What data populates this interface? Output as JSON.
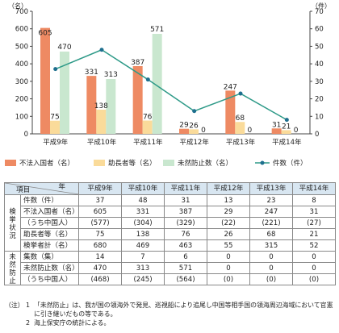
{
  "chart_data": {
    "type": "bar",
    "categories": [
      "平成9年",
      "平成10年",
      "平成11年",
      "平成12年",
      "平成13年",
      "平成14年"
    ],
    "left_unit": "（名）",
    "right_unit": "（件）",
    "left_ylim": [
      0,
      700
    ],
    "left_ticks": [
      0,
      100,
      200,
      300,
      400,
      500,
      600,
      700
    ],
    "right_ylim": [
      0,
      70
    ],
    "right_ticks": [
      0,
      10,
      20,
      30,
      40,
      50,
      60,
      70
    ],
    "series": [
      {
        "name": "不法入国者（名）",
        "type": "bar",
        "color": "#ee8a63",
        "values": [
          605,
          331,
          387,
          29,
          247,
          31
        ]
      },
      {
        "name": "助長者等（名）",
        "type": "bar",
        "color": "#fadb9a",
        "values": [
          75,
          138,
          76,
          26,
          68,
          21
        ]
      },
      {
        "name": "未然防止数（名）",
        "type": "bar",
        "color": "#c9e7cf",
        "values": [
          470,
          313,
          571,
          0,
          0,
          0
        ]
      },
      {
        "name": "件数（件）",
        "type": "line",
        "color": "#2e9a88",
        "values": [
          37,
          48,
          31,
          13,
          23,
          8
        ]
      }
    ]
  },
  "table": {
    "header_nen": "年",
    "header_koumoku": "項目",
    "years": [
      "平成9年",
      "平成10年",
      "平成11年",
      "平成12年",
      "平成13年",
      "平成14年"
    ],
    "group1": "検挙状況",
    "group2": "未然防止",
    "rows": [
      {
        "label": "件数（件）",
        "values": [
          "37",
          "48",
          "31",
          "13",
          "23",
          "8"
        ]
      },
      {
        "label": "不法入国者（名）",
        "values": [
          "605",
          "331",
          "387",
          "29",
          "247",
          "31"
        ]
      },
      {
        "label": "（うち中国人）",
        "values": [
          "(577)",
          "(304)",
          "(329)",
          "(22)",
          "(221)",
          "(27)"
        ]
      },
      {
        "label": "助長者等（名）",
        "values": [
          "75",
          "138",
          "76",
          "26",
          "68",
          "21"
        ]
      },
      {
        "label": "検挙者計（名）",
        "values": [
          "680",
          "469",
          "463",
          "55",
          "315",
          "52"
        ]
      },
      {
        "label": "集数（集）",
        "values": [
          "14",
          "7",
          "6",
          "0",
          "0",
          "0"
        ]
      },
      {
        "label": "未然防止数（名）",
        "values": [
          "470",
          "313",
          "571",
          "0",
          "0",
          "0"
        ]
      },
      {
        "label": "（うち中国人）",
        "values": [
          "(468)",
          "(245)",
          "(564)",
          "(0)",
          "(0)",
          "(0)"
        ]
      }
    ]
  },
  "notes": {
    "head": "（注）",
    "n1_num": "1",
    "n1_text": "「未然防止」は、我が国の領海外で発見、巡視船により追尾し中国等相手国の領海周辺海域において官憲に引き継いだもの等である。",
    "n2_num": "2",
    "n2_text": "海上保安庁の統計による。"
  }
}
